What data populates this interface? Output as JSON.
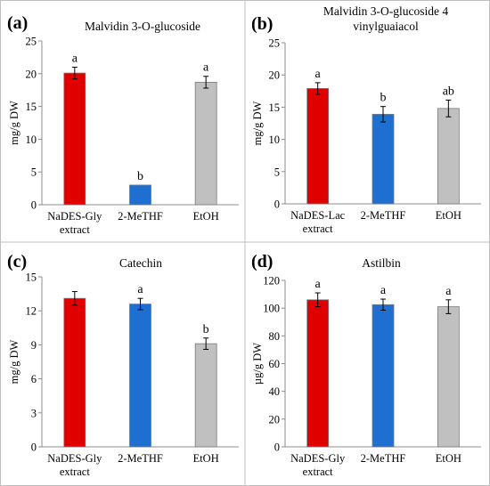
{
  "chart_data": [
    {
      "type": "bar",
      "panel": "(a)",
      "title": [
        "Malvidin 3-O-glucoside"
      ],
      "ylabel": "mg/g DW",
      "ylim": [
        0,
        25
      ],
      "yticks": [
        0,
        5,
        10,
        15,
        20,
        25
      ],
      "categories": [
        [
          "NaDES-Gly",
          "extract"
        ],
        [
          "2-MeTHF"
        ],
        [
          "EtOH"
        ]
      ],
      "values": [
        20.1,
        3.0,
        18.7
      ],
      "errors": [
        0.9,
        0.0,
        0.9
      ],
      "letters": [
        "a",
        "b",
        "a"
      ],
      "colors": [
        "#e00000",
        "#1f6fd0",
        "#c0c0c0"
      ]
    },
    {
      "type": "bar",
      "panel": "(b)",
      "title": [
        "Malvidin 3-O-glucoside 4",
        "vinylguaiacol"
      ],
      "ylabel": "mg/g DW",
      "ylim": [
        0,
        25
      ],
      "yticks": [
        0,
        5,
        10,
        15,
        20,
        25
      ],
      "categories": [
        [
          "NaDES-Lac",
          "extract"
        ],
        [
          "2-MeTHF"
        ],
        [
          "EtOH"
        ]
      ],
      "values": [
        17.9,
        13.9,
        14.8
      ],
      "errors": [
        0.9,
        1.2,
        1.3
      ],
      "letters": [
        "a",
        "b",
        "ab"
      ],
      "colors": [
        "#e00000",
        "#1f6fd0",
        "#c0c0c0"
      ]
    },
    {
      "type": "bar",
      "panel": "(c)",
      "title": [
        "Catechin"
      ],
      "ylabel": "mg/g DW",
      "ylim": [
        0,
        15
      ],
      "yticks": [
        0,
        3,
        6,
        9,
        12,
        15
      ],
      "categories": [
        [
          "NaDES-Gly",
          "extract"
        ],
        [
          "2-MeTHF"
        ],
        [
          "EtOH"
        ]
      ],
      "values": [
        13.1,
        12.6,
        9.1
      ],
      "errors": [
        0.6,
        0.5,
        0.5
      ],
      "letters": [
        "",
        "a",
        "b"
      ],
      "colors": [
        "#e00000",
        "#1f6fd0",
        "#c0c0c0"
      ]
    },
    {
      "type": "bar",
      "panel": "(d)",
      "title": [
        "Astilbin"
      ],
      "ylabel": "µg/g DW",
      "ylim": [
        0,
        120
      ],
      "yticks": [
        0,
        20,
        40,
        60,
        80,
        100,
        120
      ],
      "categories": [
        [
          "NaDES-Gly",
          "extract"
        ],
        [
          "2-MeTHF"
        ],
        [
          "EtOH"
        ]
      ],
      "values": [
        106,
        102.5,
        101
      ],
      "errors": [
        5,
        4,
        5
      ],
      "letters": [
        "a",
        "a",
        "a"
      ],
      "colors": [
        "#e00000",
        "#1f6fd0",
        "#c0c0c0"
      ]
    }
  ]
}
